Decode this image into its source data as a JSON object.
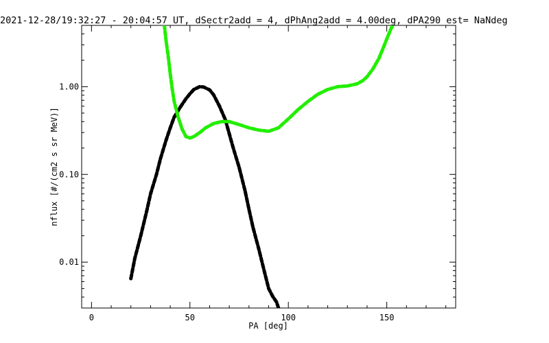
{
  "chart_data": {
    "type": "line",
    "title": "2021-12-28/19:32:27 - 20:04:57 UT, dSectr2add = 4, dPhAng2add = 4.00deg, dPA290_est=    NaNdeg",
    "xlabel": "PA [deg]",
    "ylabel": "nflux [#/(cm2 s sr MeV)]",
    "xlim": [
      -5,
      185
    ],
    "ylim": [
      0.003,
      5
    ],
    "yscale": "log",
    "grid": false,
    "x_ticks": [
      0,
      50,
      100,
      150
    ],
    "x_tick_labels": [
      "0",
      "50",
      "100",
      "150"
    ],
    "y_ticks": [
      0.01,
      0.1,
      1.0
    ],
    "y_tick_labels": [
      "0.01",
      "0.10",
      "1.00"
    ],
    "series": [
      {
        "color": "#000000",
        "x": [
          20,
          22,
          25,
          28,
          30,
          33,
          35,
          38,
          40,
          42,
          45,
          48,
          50,
          52,
          55,
          57,
          60,
          62,
          65,
          68,
          70,
          72,
          75,
          78,
          80,
          82,
          85,
          88,
          90,
          92,
          94,
          95
        ],
        "y": [
          0.0065,
          0.011,
          0.02,
          0.038,
          0.06,
          0.1,
          0.15,
          0.25,
          0.34,
          0.45,
          0.58,
          0.73,
          0.83,
          0.93,
          1.0,
          0.99,
          0.92,
          0.81,
          0.6,
          0.42,
          0.29,
          0.2,
          0.12,
          0.065,
          0.04,
          0.025,
          0.014,
          0.0075,
          0.005,
          0.0041,
          0.0035,
          0.003
        ]
      },
      {
        "color": "#22ee00",
        "x": [
          37,
          38,
          39,
          40,
          41,
          42,
          44,
          46,
          48,
          50,
          52,
          55,
          58,
          62,
          66,
          70,
          75,
          80,
          85,
          90,
          95,
          100,
          105,
          110,
          115,
          120,
          125,
          130,
          135,
          138,
          140,
          143,
          146,
          148,
          150,
          152,
          153
        ],
        "y": [
          5.0,
          3.2,
          2.2,
          1.4,
          0.95,
          0.68,
          0.45,
          0.33,
          0.27,
          0.26,
          0.27,
          0.3,
          0.34,
          0.38,
          0.4,
          0.4,
          0.37,
          0.34,
          0.32,
          0.31,
          0.34,
          0.43,
          0.55,
          0.68,
          0.82,
          0.93,
          1.0,
          1.02,
          1.08,
          1.18,
          1.3,
          1.6,
          2.1,
          2.7,
          3.5,
          4.5,
          5.0
        ]
      }
    ]
  }
}
